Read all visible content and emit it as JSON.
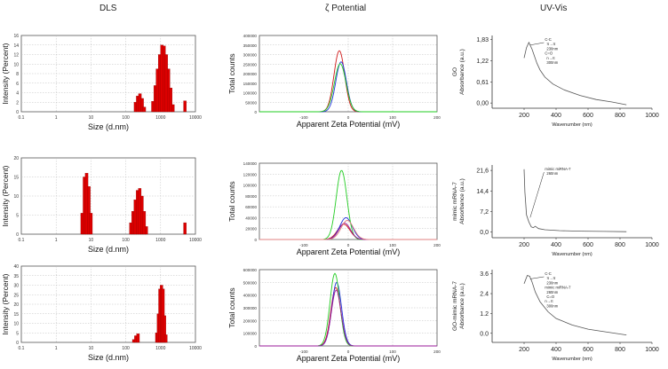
{
  "columns": [
    "DLS",
    "ζ  Potential",
    "UV-Vis"
  ],
  "colors": {
    "bar": "#dd0000",
    "bar_edge": "#880000",
    "series": [
      "#d01818",
      "#2233dd",
      "#22cc22",
      "#9a1a9a",
      "#e08080",
      "#3bb5e0"
    ],
    "uv_line": "#555555",
    "grid": "#bfbfbf"
  },
  "chart_data": [
    {
      "type": "bar",
      "panel": "dls-1",
      "log_x": true,
      "xlabel": "Size (d.nm)",
      "ylabel": "Intensity (Percent)",
      "xlim": [
        0.1,
        10000
      ],
      "ylim": [
        0,
        16
      ],
      "xticks": [
        "0.1",
        "1",
        "10",
        "100",
        "1000",
        "10000"
      ],
      "yticks": [
        "0",
        "2",
        "4",
        "6",
        "8",
        "10",
        "12",
        "14",
        "16"
      ],
      "grid": true,
      "x": [
        190,
        220,
        255,
        295,
        340,
        600,
        700,
        810,
        940,
        1090,
        1260,
        1460,
        1690,
        1960,
        2270,
        5000
      ],
      "values": [
        2.0,
        3.3,
        3.8,
        2.8,
        1.0,
        2.2,
        5.5,
        9.0,
        12.0,
        14.0,
        13.8,
        12.0,
        9.0,
        5.0,
        1.5,
        2.3
      ]
    },
    {
      "type": "bar",
      "panel": "dls-2",
      "log_x": true,
      "xlabel": "Size (d.nm)",
      "ylabel": "Intensity (Percent)",
      "xlim": [
        0.1,
        10000
      ],
      "ylim": [
        0,
        20
      ],
      "xticks": [
        "0.1",
        "1",
        "10",
        "100",
        "1000",
        "10000"
      ],
      "yticks": [
        "0",
        "5",
        "10",
        "15",
        "20"
      ],
      "grid": true,
      "x": [
        5.6,
        6.5,
        7.5,
        8.7,
        10.0,
        140,
        162,
        188,
        218,
        252,
        292,
        338,
        390,
        5000
      ],
      "values": [
        5.5,
        15.0,
        16.0,
        12.5,
        5.5,
        3.0,
        6.0,
        9.0,
        11.5,
        12.0,
        10.0,
        6.0,
        2.0,
        3.0
      ]
    },
    {
      "type": "bar",
      "panel": "dls-3",
      "log_x": true,
      "xlabel": "Size (d.nm)",
      "ylabel": "Intensity (Percent)",
      "xlim": [
        0.1,
        10000
      ],
      "ylim": [
        0,
        40
      ],
      "xticks": [
        "0.1",
        "1",
        "10",
        "100",
        "1000",
        "10000"
      ],
      "yticks": [
        "0",
        "5",
        "10",
        "15",
        "20",
        "25",
        "30",
        "35",
        "40"
      ],
      "grid": true,
      "x": [
        170,
        195,
        225,
        780,
        870,
        960,
        1060,
        1170,
        1290,
        1420
      ],
      "values": [
        1.5,
        3.5,
        4.5,
        5.0,
        15.0,
        28.0,
        30.0,
        28.0,
        14.0,
        4.0
      ]
    },
    {
      "type": "line",
      "panel": "zeta-1",
      "xlabel": "Apparent Zeta Potential (mV)",
      "ylabel": "Total counts",
      "xlim": [
        -200,
        200
      ],
      "ylim": [
        0,
        400000
      ],
      "xticks": [
        "-100",
        "0",
        "100",
        "200"
      ],
      "yticks": [
        "0",
        "50000",
        "100000",
        "150000",
        "200000",
        "250000",
        "300000",
        "350000",
        "400000"
      ],
      "grid": true,
      "series": [
        {
          "center": -20,
          "width": 12,
          "peak": 320000
        },
        {
          "center": -16,
          "width": 12,
          "peak": 262000
        },
        {
          "center": -18,
          "width": 13,
          "peak": 252000
        }
      ]
    },
    {
      "type": "line",
      "panel": "zeta-2",
      "xlabel": "Apparent Zeta Potential (mV)",
      "ylabel": "Total counts",
      "xlim": [
        -200,
        200
      ],
      "ylim": [
        0,
        140000
      ],
      "xticks": [
        "-100",
        "0",
        "100",
        "200"
      ],
      "yticks": [
        "0",
        "20000",
        "40000",
        "60000",
        "80000",
        "100000",
        "120000",
        "140000"
      ],
      "grid": true,
      "series": [
        {
          "center": -10,
          "width": 14,
          "peak": 28000
        },
        {
          "center": -5,
          "width": 14,
          "peak": 40000
        },
        {
          "center": -15,
          "width": 12,
          "peak": 127000
        },
        {
          "center": -8,
          "width": 13,
          "peak": 30000
        },
        {
          "center": -2,
          "width": 14,
          "peak": 35000
        }
      ]
    },
    {
      "type": "line",
      "panel": "zeta-3",
      "xlabel": "Apparent Zeta Potential (mV)",
      "ylabel": "Total counts",
      "xlim": [
        -200,
        200
      ],
      "ylim": [
        0,
        600000
      ],
      "xticks": [
        "-100",
        "0",
        "100",
        "200"
      ],
      "yticks": [
        "0",
        "100000",
        "200000",
        "300000",
        "400000",
        "500000",
        "600000"
      ],
      "grid": true,
      "series": [
        {
          "center": -28,
          "width": 11,
          "peak": 460000
        },
        {
          "center": -26,
          "width": 11,
          "peak": 500000
        },
        {
          "center": -30,
          "width": 11,
          "peak": 570000
        },
        {
          "center": -27,
          "width": 11,
          "peak": 440000
        }
      ]
    },
    {
      "type": "line",
      "panel": "uv-1",
      "xlabel": "Wavenumber (nm)",
      "ylabel": "Absorbance (a.u.)",
      "side_label": "GO",
      "xlim": [
        0,
        1000
      ],
      "ylim": [
        -0.15,
        1.95
      ],
      "xticks": [
        "200",
        "400",
        "600",
        "800",
        "1000"
      ],
      "yticks": [
        "0,00",
        "0,61",
        "1,22",
        "1,83"
      ],
      "x": [
        200,
        215,
        230,
        250,
        280,
        300,
        330,
        380,
        450,
        550,
        650,
        750,
        840
      ],
      "values": [
        1.3,
        1.6,
        1.75,
        1.55,
        1.15,
        0.95,
        0.75,
        0.55,
        0.38,
        0.22,
        0.1,
        0.03,
        -0.05
      ],
      "annotations": [
        "C-C",
        "π→π",
        "230nm",
        "C=O",
        "n→π",
        "300nm"
      ]
    },
    {
      "type": "line",
      "panel": "uv-2",
      "xlabel": "Wavenumber (nm)",
      "ylabel": "Absorbance (a.u.)",
      "side_label": "mimic mRNA-7",
      "xlim": [
        0,
        1000
      ],
      "ylim": [
        -2.0,
        23.5
      ],
      "xticks": [
        "200",
        "400",
        "600",
        "800",
        "1000"
      ],
      "yticks": [
        "0,0",
        "7,2",
        "14,4",
        "21,6"
      ],
      "x": [
        200,
        205,
        215,
        230,
        245,
        258,
        270,
        290,
        330,
        420,
        550,
        700,
        840
      ],
      "values": [
        22.0,
        14.0,
        6.0,
        3.5,
        1.8,
        1.5,
        2.0,
        1.2,
        0.8,
        0.5,
        0.3,
        0.2,
        0.1
      ],
      "annotations": [
        "mimic miRNA-7",
        "260nm"
      ]
    },
    {
      "type": "line",
      "panel": "uv-3",
      "xlabel": "Wavenumber (nm)",
      "ylabel": "Absorbance (a.u.)",
      "side_label": "GO-mimic mRNA-7",
      "xlim": [
        0,
        1000
      ],
      "ylim": [
        -0.55,
        3.85
      ],
      "xticks": [
        "200",
        "400",
        "600",
        "800",
        "1000"
      ],
      "yticks": [
        "0.0",
        "1.2",
        "2.4",
        "3.6"
      ],
      "x": [
        200,
        220,
        235,
        250,
        270,
        300,
        350,
        400,
        500,
        600,
        700,
        840
      ],
      "values": [
        3.0,
        3.5,
        3.45,
        3.1,
        2.5,
        1.9,
        1.3,
        0.9,
        0.5,
        0.25,
        0.1,
        -0.1
      ],
      "annotations": [
        "C-C",
        "π→π",
        "230nm",
        "mimic miRNA-7",
        "260nm",
        "C=O",
        "n→π",
        "300nm"
      ]
    }
  ]
}
